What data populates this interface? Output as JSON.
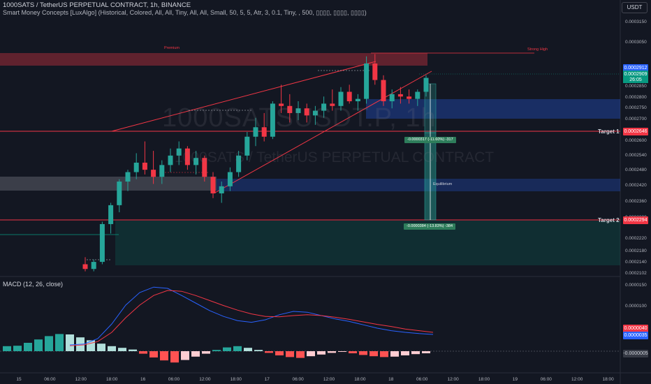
{
  "header": {
    "title": "1000SATS / TetherUS PERPETUAL CONTRACT, 1h, BINANCE",
    "indicator": "Smart Money Concepts [LuxAlgo] (Historical, Colored, All, All, Tiny, All, All, Small, 50, 5, 5, Atr, 3, 0.1, Tiny, , 500, ▯▯▯▯, ▯▯▯▯, ▯▯▯▯)"
  },
  "currency_button": "USDT",
  "watermark": {
    "ticker": "1000SATSUSDT.P, 1h",
    "name": "1000SATS / TetherUS PERPETUAL CONTRACT"
  },
  "price_axis": [
    "0.0003150",
    "0.0003050",
    "0.0002850",
    "0.0002800",
    "0.0002750",
    "0.0002700",
    "0.0002600",
    "0.0002540",
    "0.0002480",
    "0.0002420",
    "0.0002360",
    "0.0002300",
    "0.0002220",
    "0.0002180",
    "0.0002140",
    "0.0002102"
  ],
  "price_tags": {
    "current_a": "0.0002912",
    "current_b": "0.0002909",
    "countdown": "26:05",
    "target1_price": "0.0002646",
    "target2_price": "0.0002294"
  },
  "targets": {
    "target1": "Target 1",
    "target2": "Target 2"
  },
  "zones": {
    "premium": "Premium",
    "strong_high": "Strong High",
    "equilibrium": "Equilibrium"
  },
  "measures": {
    "upper": "-0.0000317 (-11.60%) -317",
    "lower": "-0.0000384 (-13.83%) -384"
  },
  "macd": {
    "label": "MACD (12, 26, close)",
    "axis": [
      "0.0000150",
      "0.0000100"
    ],
    "tags": {
      "signal": "0.0000040",
      "macd": "0.0000035",
      "hist": "-0.0000005"
    }
  },
  "time_axis": [
    "15",
    "06:00",
    "12:00",
    "18:00",
    "16",
    "06:00",
    "12:00",
    "18:00",
    "17",
    "06:00",
    "12:00",
    "18:00",
    "18",
    "06:00",
    "12:00",
    "18:00",
    "19",
    "06:00",
    "12:00",
    "18:00"
  ],
  "colors": {
    "up": "#26a69a",
    "down": "#f23645",
    "bg": "#131722",
    "premium": "#f23645",
    "discount_zone": "#2962ff",
    "target_line": "#f23645",
    "macd_line": "#2962ff",
    "signal_line": "#f23645"
  },
  "chart_data": {
    "type": "candlestick",
    "ohlc": [
      [
        0.000212,
        0.000215,
        0.000209,
        0.00021
      ],
      [
        0.00021,
        0.000214,
        0.000209,
        0.000213
      ],
      [
        0.000213,
        0.00023,
        0.000212,
        0.000229
      ],
      [
        0.000229,
        0.000238,
        0.000225,
        0.000237
      ],
      [
        0.000237,
        0.000248,
        0.000234,
        0.000247
      ],
      [
        0.000247,
        0.000252,
        0.000243,
        0.000251
      ],
      [
        0.000251,
        0.000259,
        0.000248,
        0.000255
      ],
      [
        0.000255,
        0.000264,
        0.00025,
        0.000252
      ],
      [
        0.000252,
        0.00026,
        0.000246,
        0.000249
      ],
      [
        0.000249,
        0.000256,
        0.000246,
        0.000254
      ],
      [
        0.000254,
        0.000261,
        0.000251,
        0.000258
      ],
      [
        0.000258,
        0.000264,
        0.000254,
        0.000261
      ],
      [
        0.000261,
        0.000262,
        0.000252,
        0.000254
      ],
      [
        0.000254,
        0.00026,
        0.00025,
        0.000257
      ],
      [
        0.000257,
        0.000258,
        0.000247,
        0.000249
      ],
      [
        0.000249,
        0.000251,
        0.00024,
        0.000242
      ],
      [
        0.000242,
        0.000247,
        0.000238,
        0.000245
      ],
      [
        0.000245,
        0.000253,
        0.000243,
        0.000251
      ],
      [
        0.000251,
        0.00026,
        0.000249,
        0.000258
      ],
      [
        0.000258,
        0.000268,
        0.000256,
        0.000266
      ],
      [
        0.000266,
        0.000274,
        0.000262,
        0.00027
      ],
      [
        0.00027,
        0.000276,
        0.000264,
        0.000266
      ],
      [
        0.000266,
        0.000281,
        0.000265,
        0.00028
      ],
      [
        0.00028,
        0.000288,
        0.000276,
        0.000279
      ],
      [
        0.000279,
        0.000284,
        0.000272,
        0.000276
      ],
      [
        0.000276,
        0.000281,
        0.000273,
        0.000278
      ],
      [
        0.000278,
        0.00028,
        0.000272,
        0.000275
      ],
      [
        0.000275,
        0.000279,
        0.000271,
        0.000277
      ],
      [
        0.000277,
        0.000283,
        0.000274,
        0.00028
      ],
      [
        0.00028,
        0.000286,
        0.000277,
        0.000279
      ],
      [
        0.000279,
        0.000287,
        0.000277,
        0.000285
      ],
      [
        0.000285,
        0.000288,
        0.00028,
        0.000281
      ],
      [
        0.000281,
        0.000284,
        0.000277,
        0.000282
      ],
      [
        0.000282,
        0.0003,
        0.00028,
        0.000297
      ],
      [
        0.000297,
        0.000301,
        0.000288,
        0.00029
      ],
      [
        0.00029,
        0.000292,
        0.000279,
        0.000281
      ],
      [
        0.000281,
        0.000286,
        0.000278,
        0.000284
      ],
      [
        0.000284,
        0.000287,
        0.00028,
        0.000283
      ],
      [
        0.000283,
        0.000286,
        0.00028,
        0.000282
      ],
      [
        0.000282,
        0.000286,
        0.000279,
        0.000285
      ],
      [
        0.000285,
        0.000292,
        0.000283,
        0.0002909
      ]
    ],
    "macd_hist": [
      1.2e-06,
      1.3e-06,
      2e-06,
      2.8e-06,
      3.6e-06,
      4.1e-06,
      4e-06,
      3.3e-06,
      2.6e-06,
      1.8e-06,
      1.2e-06,
      8e-07,
      4e-07,
      -6e-07,
      -1.5e-06,
      -2.2e-06,
      -2.7e-06,
      -2.1e-06,
      -1.3e-06,
      -6e-07,
      3e-07,
      9e-07,
      1.2e-06,
      8e-07,
      3e-07,
      -4e-07,
      -1e-06,
      -1.4e-06,
      -1.6e-06,
      -1.2e-06,
      -8e-07,
      -4e-07,
      -1e-07,
      -5e-07,
      -9e-07,
      -1.2e-06,
      -1.4e-06,
      -1.3e-06,
      -1e-06,
      -7e-07,
      -5e-07
    ],
    "macd_line": [
      1e-06,
      1.2e-06,
      2.5e-06,
      6e-06,
      1.05e-05,
      1.35e-05,
      1.48e-05,
      1.45e-05,
      1.28e-05,
      1.1e-05,
      9.2e-06,
      7.8e-06,
      6.8e-06,
      6.4e-06,
      7e-06,
      8.2e-06,
      9e-06,
      8.8e-06,
      8e-06,
      7.2e-06,
      6.6e-06,
      5.8e-06,
      5e-06,
      4.4e-06,
      4e-06,
      3.7e-06,
      3.5e-06
    ],
    "signal_line": [
      8e-07,
      1e-06,
      1.8e-06,
      4e-06,
      7.5e-06,
      1.05e-05,
      1.28e-05,
      1.4e-05,
      1.38e-05,
      1.28e-05,
      1.16e-05,
      1.04e-05,
      9.3e-06,
      8.4e-06,
      7.8e-06,
      7.7e-06,
      8e-06,
      8.2e-06,
      8e-06,
      7.6e-06,
      7.1e-06,
      6.5e-06,
      5.9e-06,
      5.4e-06,
      4.8e-06,
      4.4e-06,
      4e-06
    ]
  }
}
